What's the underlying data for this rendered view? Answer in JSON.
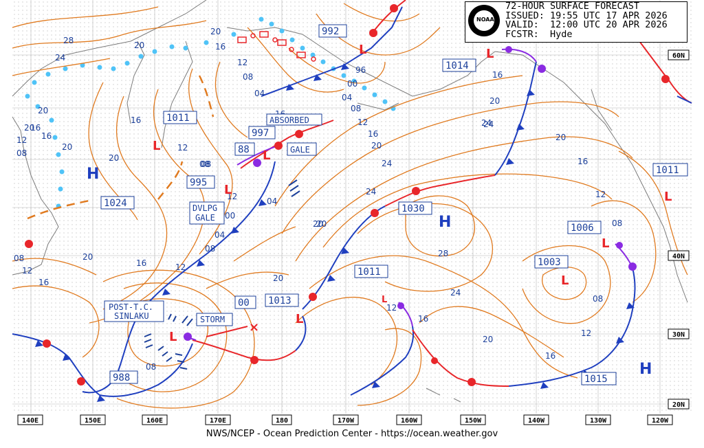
{
  "header": {
    "logo_text": "NOAA",
    "title": "72-HOUR SURFACE FORECAST",
    "issued": "ISSUED: 19:55 UTC 17 APR 2026",
    "valid": "VALID:  12:00 UTC 20 APR 2026",
    "forecaster": "FCSTR:  Hyde"
  },
  "footer": {
    "credit": "NWS/NCEP - Ocean Prediction Center - https://ocean.weather.gov"
  },
  "colors": {
    "isobar": "#e07a1f",
    "cold_front": "#1f3fbf",
    "warm_front": "#e8262a",
    "occluded": "#8a2be2",
    "ice_edge": "#4fc3f7"
  },
  "pressure_labels": {
    "p992": "992",
    "p1014": "1014",
    "p1011a": "1011",
    "p997": "997",
    "p88": "88",
    "p995": "995",
    "p1024": "1024",
    "p1030": "1030",
    "p1006": "1006",
    "p1003": "1003",
    "p1011b": "1011",
    "p1011c": "1011",
    "p1013": "1013",
    "p00": "00",
    "p988": "988",
    "p1015": "1015"
  },
  "annotations": {
    "absorbed": "ABSORBED",
    "gale": "GALE",
    "dvlpg_gale_1": "DVLPG",
    "dvlpg_gale_2": "GALE",
    "post_tc_1": "POST-T.C.",
    "post_tc_2": "SINLAKU",
    "storm": "STORM"
  },
  "symbols": {
    "high": "H",
    "low": "L"
  },
  "isobar_labels": {
    "i1": "28",
    "i2": "24",
    "i3": "20",
    "i4": "20",
    "i5": "16",
    "i6": "12",
    "i7": "08",
    "i8": "04",
    "i9": "96",
    "i10": "00",
    "i11": "04",
    "i12": "08",
    "i13": "12",
    "i14": "16",
    "i15": "20",
    "i16": "16",
    "i17": "20",
    "i18": "16",
    "i19": "12",
    "i20": "08",
    "i21": "20",
    "i22": "20",
    "i23": "16",
    "i24": "08",
    "i25": "20",
    "i26": "20",
    "i27": "24",
    "i28": "24",
    "i29": "20",
    "i30": "24",
    "i31": "20",
    "i32": "16",
    "i33": "12",
    "i34": "08",
    "i35": "00",
    "i36": "04",
    "i37": "04",
    "i38": "08",
    "i39": "20",
    "i40": "16",
    "i41": "12",
    "i42": "08",
    "i43": "12",
    "i44": "16",
    "i45": "28",
    "i46": "24",
    "i47": "20",
    "i48": "16",
    "i49": "12",
    "i50": "08",
    "i51": "08",
    "i52": "12",
    "i53": "16",
    "i54": "20",
    "i55": "16",
    "i56": "12",
    "i57": "08",
    "i58": "16",
    "i59": "12",
    "i60": "20",
    "i61": "24"
  },
  "lat_labels": [
    "60N",
    "40N",
    "30N",
    "20N"
  ],
  "lon_labels": [
    "140E",
    "150E",
    "160E",
    "170E",
    "180",
    "170W",
    "160W",
    "150W",
    "140W",
    "130W",
    "120W"
  ]
}
